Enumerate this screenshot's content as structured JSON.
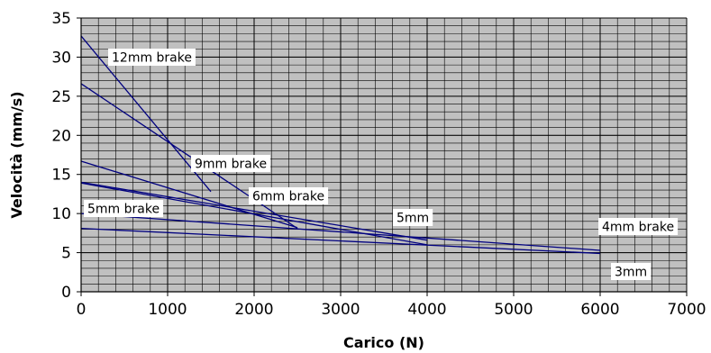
{
  "chart_data": {
    "type": "line",
    "title": "",
    "xlabel": "Carico (N)",
    "ylabel": "Velocità (mm/s)",
    "xlim": [
      0,
      7000
    ],
    "ylim": [
      0,
      35
    ],
    "xticks": [
      "0",
      "1000",
      "2000",
      "3000",
      "4000",
      "5000",
      "6000",
      "7000"
    ],
    "yticks": [
      "0",
      "5",
      "10",
      "15",
      "20",
      "25",
      "30",
      "35"
    ],
    "grid": true,
    "colors": {
      "plot_background": "#c0c0c0",
      "gridline": "#000000",
      "series_line": "#00007f",
      "label_background": "#ffffff"
    },
    "series": [
      {
        "name": "12mm brake",
        "x": [
          0,
          1500
        ],
        "y": [
          32.7,
          12.8
        ]
      },
      {
        "name": "9mm brake",
        "x": [
          0,
          2500
        ],
        "y": [
          26.6,
          8.1
        ]
      },
      {
        "name": "6mm brake",
        "x": [
          0,
          2500
        ],
        "y": [
          16.7,
          8.2
        ]
      },
      {
        "name": "5mm brake",
        "x": [
          0,
          4000
        ],
        "y": [
          14.0,
          6.6
        ]
      },
      {
        "name": "5mm",
        "x": [
          0,
          4000
        ],
        "y": [
          13.9,
          6.0
        ]
      },
      {
        "name": "4mm brake",
        "x": [
          0,
          6000
        ],
        "y": [
          10.0,
          5.3
        ]
      },
      {
        "name": "3mm",
        "x": [
          0,
          6000
        ],
        "y": [
          8.1,
          4.9
        ]
      }
    ]
  }
}
